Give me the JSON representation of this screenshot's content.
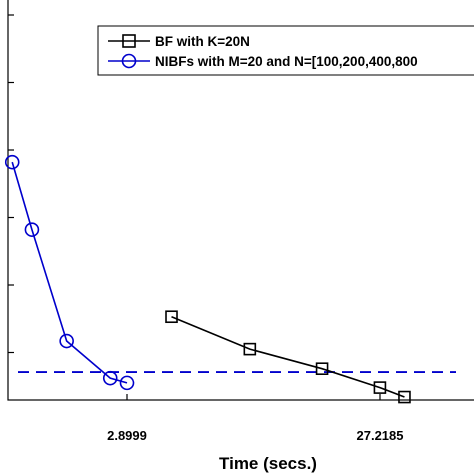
{
  "chart_data": {
    "type": "line",
    "title": "",
    "xlabel": "Time (secs.)",
    "ylabel": "",
    "x_scale": "log",
    "y_scale": "log",
    "x_ticks": [
      {
        "value": 2.8999,
        "label": "2.8999"
      },
      {
        "value": 27.2185,
        "label": "27.2185"
      }
    ],
    "xlim": [
      0.7,
      50
    ],
    "y_decades": 6,
    "grid": false,
    "legend_position": "top-right",
    "reference_line": {
      "style": "dashed",
      "color": "#0000cc",
      "y_decade": 0.71
    },
    "series": [
      {
        "name": "BF with K=20N",
        "color": "#000000",
        "marker": "square",
        "x": [
          4.3,
          8.6,
          16.3,
          27.2,
          33.8
        ],
        "y_decade": [
          1.53,
          1.05,
          0.76,
          0.48,
          0.34
        ]
      },
      {
        "name": "NIBFs with M=20 and N=[100,200,400,800",
        "color": "#0000cc",
        "marker": "circle",
        "x": [
          1.05,
          1.25,
          1.7,
          2.5,
          2.9
        ],
        "y_decade": [
          3.82,
          2.82,
          1.17,
          0.62,
          0.55
        ]
      }
    ]
  }
}
